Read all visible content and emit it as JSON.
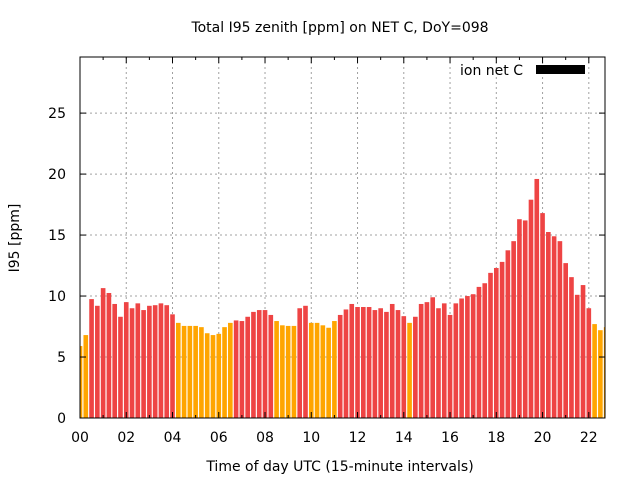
{
  "chart_data": {
    "type": "bar",
    "title": "Total I95 zenith [ppm] on NET C, DoY=098",
    "xlabel": "Time of day UTC (15-minute intervals)",
    "ylabel": "I95 [ppm]",
    "ylim": [
      0,
      29.6
    ],
    "xlim_hours": [
      0,
      22.7
    ],
    "yticks": [
      0,
      5,
      10,
      15,
      20,
      25
    ],
    "xtick_labels": [
      "00",
      "02",
      "04",
      "06",
      "08",
      "10",
      "12",
      "14",
      "16",
      "18",
      "20",
      "22"
    ],
    "xtick_hours": [
      0,
      2,
      4,
      6,
      8,
      10,
      12,
      14,
      16,
      18,
      20,
      22
    ],
    "grid": true,
    "legend": {
      "label": "ion net C",
      "placement": "top-right",
      "color": "#000000"
    },
    "colors": {
      "normal": "#EE4444",
      "low": "#FFA500"
    },
    "interval_minutes": 15,
    "values": [
      5.9,
      6.8,
      9.75,
      9.2,
      10.65,
      10.25,
      9.35,
      8.3,
      9.5,
      9.0,
      9.4,
      8.85,
      9.2,
      9.25,
      9.4,
      9.25,
      8.5,
      7.8,
      7.55,
      7.55,
      7.55,
      7.45,
      6.95,
      6.8,
      6.9,
      7.45,
      7.8,
      8.0,
      7.95,
      8.3,
      8.7,
      8.85,
      8.85,
      8.45,
      7.95,
      7.6,
      7.55,
      7.55,
      9.0,
      9.2,
      7.8,
      7.8,
      7.6,
      7.4,
      7.95,
      8.45,
      8.9,
      9.35,
      9.1,
      9.1,
      9.1,
      8.85,
      9.0,
      8.7,
      9.35,
      8.85,
      8.35,
      7.8,
      8.3,
      9.35,
      9.5,
      9.9,
      9.0,
      9.4,
      8.45,
      9.4,
      9.8,
      10.0,
      10.15,
      10.75,
      11.05,
      11.9,
      12.3,
      12.8,
      13.75,
      14.5,
      16.3,
      16.2,
      17.9,
      19.6,
      16.8,
      15.25,
      14.9,
      14.5,
      12.7,
      11.55,
      10.1,
      10.9,
      9.0,
      7.7,
      7.2,
      7.45
    ],
    "low_flags": [
      1,
      1,
      0,
      0,
      0,
      0,
      0,
      0,
      0,
      0,
      0,
      0,
      0,
      0,
      0,
      0,
      0,
      1,
      1,
      1,
      1,
      1,
      1,
      1,
      1,
      1,
      1,
      0,
      0,
      0,
      0,
      0,
      0,
      0,
      1,
      1,
      1,
      1,
      0,
      0,
      1,
      1,
      1,
      1,
      1,
      0,
      0,
      0,
      0,
      0,
      0,
      0,
      0,
      0,
      0,
      0,
      0,
      1,
      0,
      0,
      0,
      0,
      0,
      0,
      0,
      0,
      0,
      0,
      0,
      0,
      0,
      0,
      0,
      0,
      0,
      0,
      0,
      0,
      0,
      0,
      0,
      0,
      0,
      0,
      0,
      0,
      0,
      0,
      0,
      1,
      1,
      1
    ]
  }
}
